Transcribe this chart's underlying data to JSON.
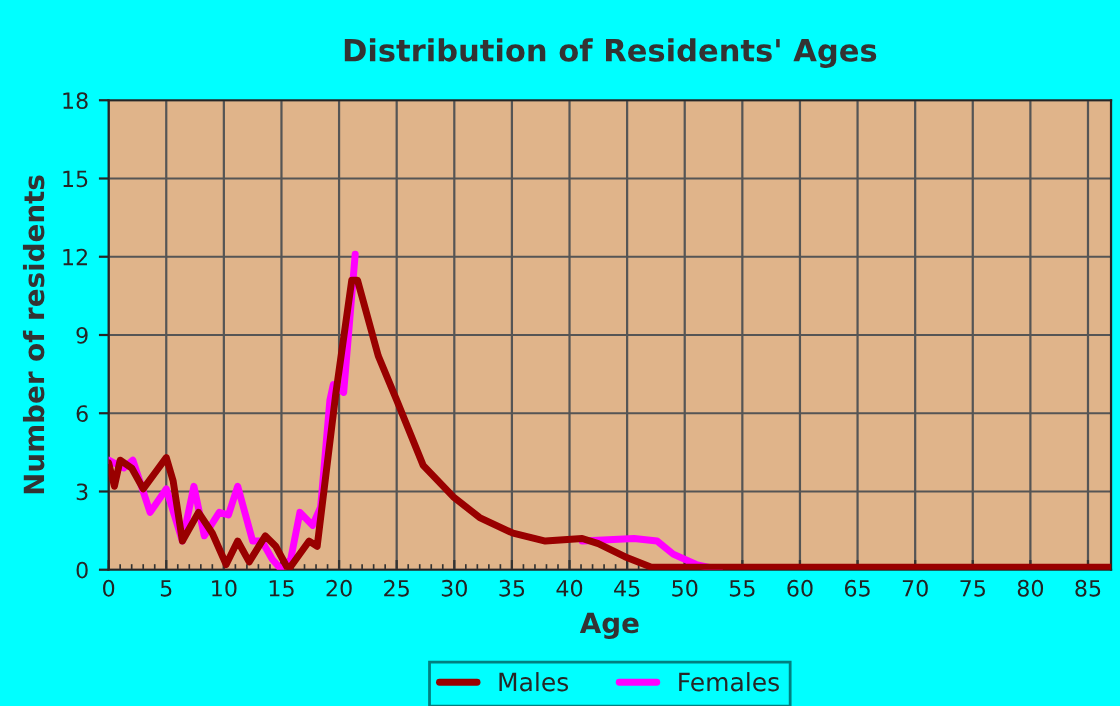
{
  "chart_data": {
    "type": "line",
    "title": "Distribution of Residents' Ages",
    "xlabel": "Age",
    "ylabel": "Number of residents",
    "xlim": [
      0,
      87
    ],
    "xticks": [
      0,
      5,
      10,
      15,
      20,
      25,
      30,
      35,
      40,
      45,
      50,
      55,
      60,
      65,
      70,
      75,
      80,
      85
    ],
    "ylim": [
      0,
      18
    ],
    "yticks": [
      0,
      3,
      6,
      9,
      12,
      15,
      18
    ],
    "grid": true,
    "legend": "bottom",
    "line_style": "solid",
    "marker": "none",
    "series": [
      {
        "name": "Males",
        "color": "#990000",
        "x": [
          0,
          0.5,
          1,
          2,
          3,
          4,
          5,
          5.6,
          6.4,
          7.8,
          9,
          10.2,
          11.2,
          12.2,
          13.6,
          14.5,
          15.6,
          17.4,
          18.1,
          19.7,
          21.1,
          21.6,
          23.4,
          25,
          27.3,
          29.9,
          32.2,
          35.1,
          37.9,
          41.1,
          42.5,
          44.8,
          47.1,
          49.4,
          55,
          60,
          65,
          70,
          75,
          80,
          87
        ],
        "values": [
          4.1,
          3.2,
          4.2,
          3.9,
          3.1,
          3.7,
          4.3,
          3.4,
          1.1,
          2.2,
          1.4,
          0.2,
          1.1,
          0.3,
          1.3,
          0.9,
          0,
          1.1,
          0.9,
          6.7,
          11.1,
          11.1,
          8.2,
          6.5,
          4,
          2.8,
          2,
          1.4,
          1.1,
          1.2,
          1,
          0.5,
          0.1,
          0.1,
          0.1,
          0.1,
          0.1,
          0.1,
          0.1,
          0.1,
          0.1
        ]
      },
      {
        "name": "Females",
        "color": "#ff00ff",
        "x": [
          0,
          1.3,
          2.1,
          3.6,
          5,
          6.4,
          7.4,
          8.3,
          9.6,
          10.4,
          11.2,
          12.5,
          13.3,
          14.2,
          15,
          15.8,
          16.6,
          17.7,
          18.4,
          19.2,
          19.5,
          20.4,
          21.4,
          23.4,
          25,
          27.3,
          29.9,
          32.2,
          35.1,
          37.9,
          41.1,
          45.6,
          47.6,
          49,
          51,
          53
        ],
        "values": [
          4.2,
          3.9,
          4.2,
          2.2,
          3.1,
          1.1,
          3.2,
          1.3,
          2.2,
          2.1,
          3.2,
          1.1,
          1.1,
          0.4,
          0,
          0.4,
          2.2,
          1.7,
          2.4,
          6.5,
          7.1,
          6.8,
          12.1,
          null,
          null,
          null,
          null,
          null,
          null,
          null,
          1.1,
          1.2,
          1.1,
          0.6,
          0.2,
          0
        ]
      }
    ]
  }
}
